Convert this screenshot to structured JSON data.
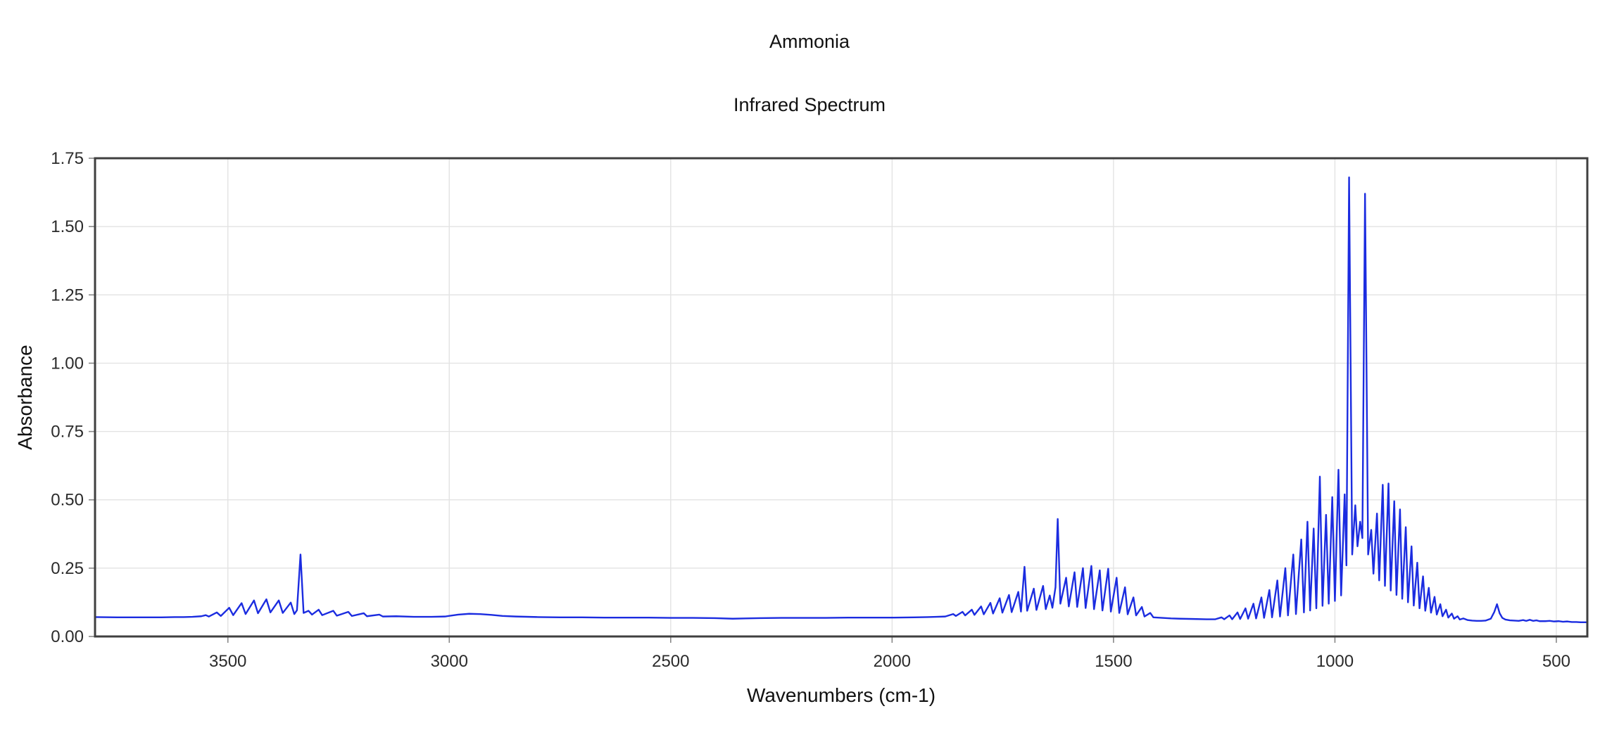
{
  "chart_data": {
    "type": "line",
    "title": "Ammonia",
    "subtitle": "Infrared Spectrum",
    "xlabel": "Wavenumbers (cm-1)",
    "ylabel": "Absorbance",
    "x_axis_reversed": true,
    "x_range": [
      3800,
      430
    ],
    "ylim": [
      0,
      1.75
    ],
    "x_ticks": [
      3500,
      3000,
      2500,
      2000,
      1500,
      1000,
      500
    ],
    "y_tick_labels": [
      "0.00",
      "0.25",
      "0.50",
      "0.75",
      "1.00",
      "1.25",
      "1.50",
      "1.75"
    ],
    "grid": true,
    "legend": "none",
    "line_color": "#1b2ce0",
    "grid_color": "#e3e3e3",
    "border_color": "#3f3f3f",
    "tick_color": "#888888",
    "series": [
      {
        "name": "absorbance",
        "points": [
          [
            3800,
            0.071
          ],
          [
            3750,
            0.07
          ],
          [
            3700,
            0.07
          ],
          [
            3650,
            0.07
          ],
          [
            3620,
            0.071
          ],
          [
            3600,
            0.071
          ],
          [
            3580,
            0.072
          ],
          [
            3560,
            0.074
          ],
          [
            3550,
            0.078
          ],
          [
            3543,
            0.073
          ],
          [
            3525,
            0.088
          ],
          [
            3516,
            0.075
          ],
          [
            3497,
            0.105
          ],
          [
            3488,
            0.078
          ],
          [
            3469,
            0.122
          ],
          [
            3460,
            0.082
          ],
          [
            3441,
            0.132
          ],
          [
            3432,
            0.085
          ],
          [
            3413,
            0.136
          ],
          [
            3404,
            0.088
          ],
          [
            3385,
            0.132
          ],
          [
            3376,
            0.086
          ],
          [
            3358,
            0.124
          ],
          [
            3350,
            0.082
          ],
          [
            3344,
            0.096
          ],
          [
            3336,
            0.3
          ],
          [
            3329,
            0.086
          ],
          [
            3318,
            0.094
          ],
          [
            3310,
            0.08
          ],
          [
            3295,
            0.098
          ],
          [
            3287,
            0.078
          ],
          [
            3262,
            0.094
          ],
          [
            3254,
            0.076
          ],
          [
            3228,
            0.09
          ],
          [
            3220,
            0.075
          ],
          [
            3193,
            0.085
          ],
          [
            3186,
            0.074
          ],
          [
            3158,
            0.08
          ],
          [
            3150,
            0.073
          ],
          [
            3120,
            0.074
          ],
          [
            3080,
            0.072
          ],
          [
            3040,
            0.072
          ],
          [
            3010,
            0.073
          ],
          [
            2980,
            0.08
          ],
          [
            2955,
            0.083
          ],
          [
            2930,
            0.082
          ],
          [
            2905,
            0.079
          ],
          [
            2880,
            0.075
          ],
          [
            2850,
            0.073
          ],
          [
            2800,
            0.071
          ],
          [
            2750,
            0.07
          ],
          [
            2700,
            0.07
          ],
          [
            2650,
            0.069
          ],
          [
            2600,
            0.069
          ],
          [
            2550,
            0.069
          ],
          [
            2500,
            0.068
          ],
          [
            2450,
            0.068
          ],
          [
            2400,
            0.067
          ],
          [
            2360,
            0.065
          ],
          [
            2330,
            0.066
          ],
          [
            2300,
            0.067
          ],
          [
            2250,
            0.068
          ],
          [
            2200,
            0.068
          ],
          [
            2150,
            0.068
          ],
          [
            2100,
            0.069
          ],
          [
            2050,
            0.069
          ],
          [
            2000,
            0.069
          ],
          [
            1950,
            0.07
          ],
          [
            1920,
            0.071
          ],
          [
            1900,
            0.072
          ],
          [
            1880,
            0.073
          ],
          [
            1862,
            0.082
          ],
          [
            1856,
            0.075
          ],
          [
            1841,
            0.09
          ],
          [
            1835,
            0.077
          ],
          [
            1820,
            0.098
          ],
          [
            1814,
            0.079
          ],
          [
            1799,
            0.11
          ],
          [
            1793,
            0.081
          ],
          [
            1778,
            0.123
          ],
          [
            1772,
            0.084
          ],
          [
            1757,
            0.14
          ],
          [
            1751,
            0.087
          ],
          [
            1736,
            0.152
          ],
          [
            1730,
            0.089
          ],
          [
            1715,
            0.163
          ],
          [
            1709,
            0.091
          ],
          [
            1701,
            0.255
          ],
          [
            1695,
            0.094
          ],
          [
            1680,
            0.175
          ],
          [
            1674,
            0.097
          ],
          [
            1659,
            0.185
          ],
          [
            1653,
            0.1
          ],
          [
            1644,
            0.15
          ],
          [
            1638,
            0.105
          ],
          [
            1631,
            0.18
          ],
          [
            1626,
            0.43
          ],
          [
            1620,
            0.12
          ],
          [
            1607,
            0.215
          ],
          [
            1601,
            0.11
          ],
          [
            1588,
            0.235
          ],
          [
            1582,
            0.108
          ],
          [
            1569,
            0.25
          ],
          [
            1563,
            0.104
          ],
          [
            1550,
            0.258
          ],
          [
            1544,
            0.1
          ],
          [
            1531,
            0.242
          ],
          [
            1525,
            0.095
          ],
          [
            1512,
            0.248
          ],
          [
            1506,
            0.091
          ],
          [
            1493,
            0.215
          ],
          [
            1487,
            0.086
          ],
          [
            1474,
            0.18
          ],
          [
            1468,
            0.081
          ],
          [
            1455,
            0.143
          ],
          [
            1449,
            0.077
          ],
          [
            1436,
            0.108
          ],
          [
            1430,
            0.073
          ],
          [
            1417,
            0.086
          ],
          [
            1410,
            0.07
          ],
          [
            1390,
            0.068
          ],
          [
            1370,
            0.066
          ],
          [
            1350,
            0.065
          ],
          [
            1320,
            0.064
          ],
          [
            1290,
            0.063
          ],
          [
            1270,
            0.063
          ],
          [
            1256,
            0.07
          ],
          [
            1250,
            0.063
          ],
          [
            1238,
            0.077
          ],
          [
            1232,
            0.063
          ],
          [
            1220,
            0.088
          ],
          [
            1214,
            0.064
          ],
          [
            1202,
            0.103
          ],
          [
            1196,
            0.065
          ],
          [
            1184,
            0.12
          ],
          [
            1178,
            0.066
          ],
          [
            1166,
            0.143
          ],
          [
            1160,
            0.068
          ],
          [
            1148,
            0.17
          ],
          [
            1142,
            0.07
          ],
          [
            1130,
            0.205
          ],
          [
            1124,
            0.073
          ],
          [
            1112,
            0.25
          ],
          [
            1106,
            0.077
          ],
          [
            1094,
            0.3
          ],
          [
            1088,
            0.082
          ],
          [
            1076,
            0.355
          ],
          [
            1070,
            0.088
          ],
          [
            1062,
            0.42
          ],
          [
            1056,
            0.095
          ],
          [
            1048,
            0.395
          ],
          [
            1042,
            0.103
          ],
          [
            1034,
            0.585
          ],
          [
            1028,
            0.112
          ],
          [
            1020,
            0.445
          ],
          [
            1014,
            0.12
          ],
          [
            1006,
            0.51
          ],
          [
            1000,
            0.13
          ],
          [
            992,
            0.61
          ],
          [
            986,
            0.15
          ],
          [
            978,
            0.52
          ],
          [
            974,
            0.26
          ],
          [
            968,
            1.68
          ],
          [
            961,
            0.3
          ],
          [
            954,
            0.48
          ],
          [
            949,
            0.33
          ],
          [
            943,
            0.42
          ],
          [
            938,
            0.36
          ],
          [
            932,
            1.62
          ],
          [
            925,
            0.3
          ],
          [
            918,
            0.39
          ],
          [
            913,
            0.23
          ],
          [
            905,
            0.45
          ],
          [
            900,
            0.205
          ],
          [
            892,
            0.555
          ],
          [
            887,
            0.185
          ],
          [
            879,
            0.56
          ],
          [
            874,
            0.168
          ],
          [
            866,
            0.495
          ],
          [
            861,
            0.152
          ],
          [
            853,
            0.465
          ],
          [
            848,
            0.138
          ],
          [
            840,
            0.4
          ],
          [
            835,
            0.125
          ],
          [
            827,
            0.33
          ],
          [
            822,
            0.113
          ],
          [
            814,
            0.27
          ],
          [
            809,
            0.103
          ],
          [
            801,
            0.22
          ],
          [
            796,
            0.094
          ],
          [
            788,
            0.178
          ],
          [
            783,
            0.087
          ],
          [
            775,
            0.145
          ],
          [
            770,
            0.08
          ],
          [
            762,
            0.118
          ],
          [
            757,
            0.074
          ],
          [
            749,
            0.098
          ],
          [
            744,
            0.069
          ],
          [
            736,
            0.084
          ],
          [
            731,
            0.065
          ],
          [
            723,
            0.074
          ],
          [
            718,
            0.062
          ],
          [
            710,
            0.066
          ],
          [
            700,
            0.06
          ],
          [
            690,
            0.058
          ],
          [
            680,
            0.057
          ],
          [
            670,
            0.057
          ],
          [
            660,
            0.058
          ],
          [
            648,
            0.065
          ],
          [
            640,
            0.09
          ],
          [
            634,
            0.118
          ],
          [
            628,
            0.085
          ],
          [
            622,
            0.068
          ],
          [
            615,
            0.062
          ],
          [
            605,
            0.059
          ],
          [
            595,
            0.058
          ],
          [
            585,
            0.057
          ],
          [
            575,
            0.06
          ],
          [
            568,
            0.057
          ],
          [
            560,
            0.061
          ],
          [
            552,
            0.057
          ],
          [
            545,
            0.059
          ],
          [
            538,
            0.056
          ],
          [
            525,
            0.056
          ],
          [
            515,
            0.057
          ],
          [
            505,
            0.055
          ],
          [
            495,
            0.056
          ],
          [
            485,
            0.054
          ],
          [
            475,
            0.055
          ],
          [
            465,
            0.053
          ],
          [
            455,
            0.053
          ],
          [
            445,
            0.052
          ],
          [
            435,
            0.052
          ],
          [
            430,
            0.052
          ]
        ]
      }
    ]
  }
}
